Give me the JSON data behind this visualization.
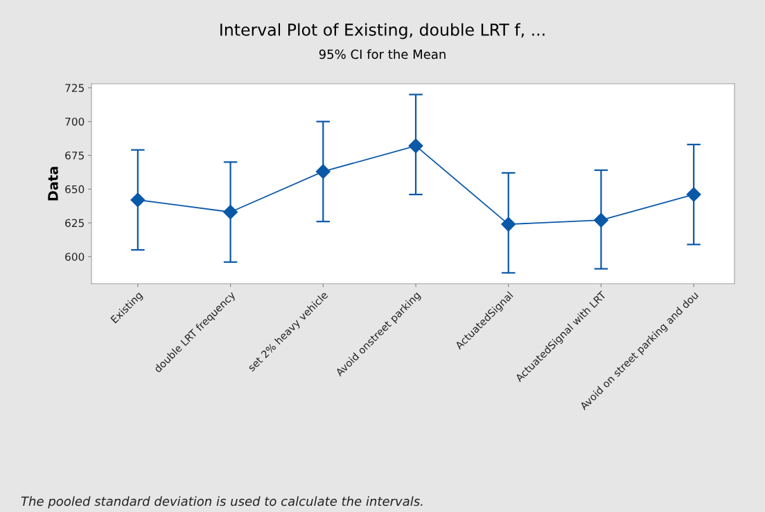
{
  "chart_data": {
    "type": "line",
    "title": "Interval Plot of Existing, double LRT f, ...",
    "subtitle": "95% CI for the Mean",
    "ylabel": "Data",
    "categories": [
      "Existing",
      "double LRT frequency",
      "set 2% heavy vehicle",
      "Avoid onstreet parking",
      "ActuatedSignal",
      "ActuatedSignal with LRT",
      "Avoid on street parking and dou"
    ],
    "series": [
      {
        "color": "#0a58a8",
        "values": [
          642,
          633,
          663,
          682,
          624,
          627,
          646
        ],
        "errors": [
          [
            605,
            679
          ],
          [
            596,
            670
          ],
          [
            626,
            700
          ],
          [
            646,
            720
          ],
          [
            588,
            662
          ],
          [
            591,
            664
          ],
          [
            609,
            683
          ]
        ]
      }
    ],
    "ylim": [
      580,
      728
    ],
    "yticks": [
      600,
      625,
      650,
      675,
      700,
      725
    ],
    "marker": "diamond",
    "line_style": "solid",
    "annotations": [
      "The pooled standard deviation is used to calculate the intervals."
    ]
  }
}
